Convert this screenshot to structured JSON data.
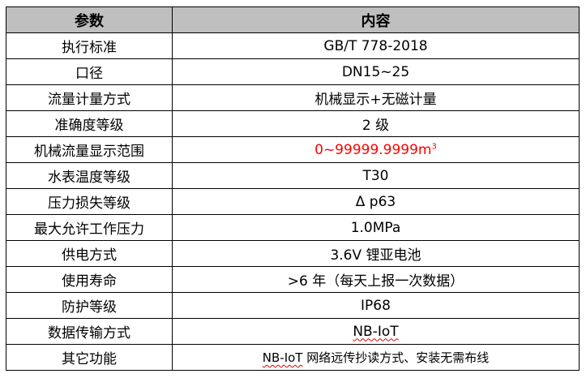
{
  "header": {
    "param": "参数",
    "content": "内容"
  },
  "rows": [
    {
      "param": "执行标准",
      "value": "GB/T 778-2018"
    },
    {
      "param": "口径",
      "value": "DN15~25"
    },
    {
      "param": "流量计量方式",
      "value": "机械显示+无磁计量"
    },
    {
      "param": "准确度等级",
      "value": "2 级"
    },
    {
      "param": "机械流量显示范围",
      "value": "0~99999.9999m",
      "sup": "3"
    },
    {
      "param": "水表温度等级",
      "value": "T30"
    },
    {
      "param": "压力损失等级",
      "value": "Δ p63"
    },
    {
      "param": "最大允许工作压力",
      "value": "1.0MPa"
    },
    {
      "param": "供电方式",
      "value": "3.6V 锂亚电池"
    },
    {
      "param": "使用寿命",
      "value": ">6 年（每天上报一次数据）"
    },
    {
      "param": "防护等级",
      "value": "IP68"
    },
    {
      "param": "数据传输方式",
      "value": "NB-IoT"
    },
    {
      "param": "其它功能",
      "value_prefix": "NB-IoT",
      "value": " 网络远传抄读方式、安装无需布线"
    }
  ],
  "colors": {
    "header_bg": "#bfbfbf",
    "highlight": "#ff0000",
    "spellcheck": "#e00000"
  }
}
